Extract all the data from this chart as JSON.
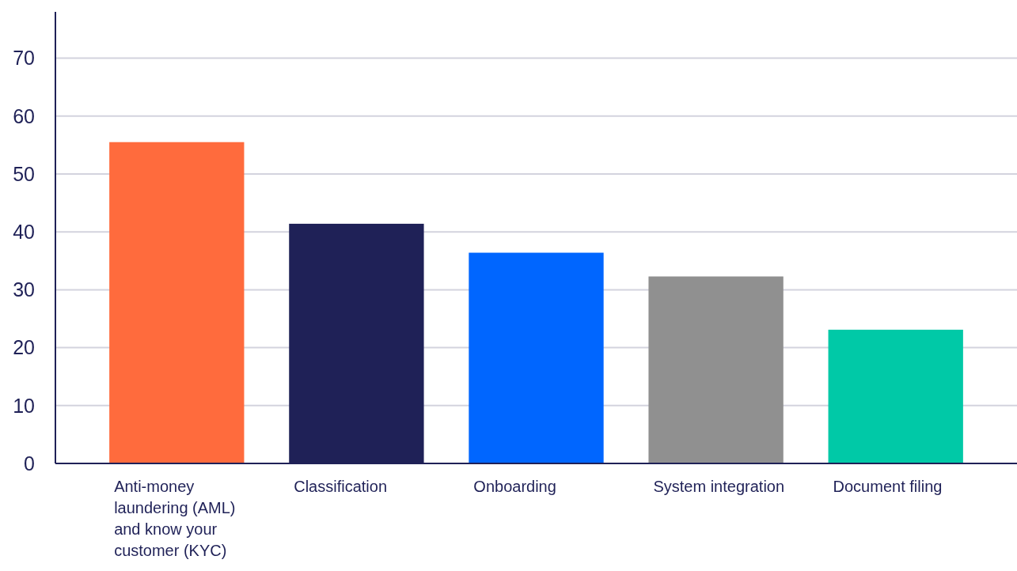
{
  "chart_data": {
    "type": "bar",
    "categories": [
      "Anti-money laundering (AML) and know your customer (KYC)",
      "Classification",
      "Onboarding",
      "System integration",
      "Document filing"
    ],
    "values": [
      55.5,
      41.4,
      36.4,
      32.3,
      23.1
    ],
    "colors": [
      "#ff6b3d",
      "#1f2157",
      "#0066ff",
      "#909090",
      "#00c9a7"
    ],
    "ylim": [
      0,
      78
    ],
    "yticks": [
      0,
      10,
      20,
      30,
      40,
      50,
      60,
      70
    ],
    "grid": "y"
  }
}
